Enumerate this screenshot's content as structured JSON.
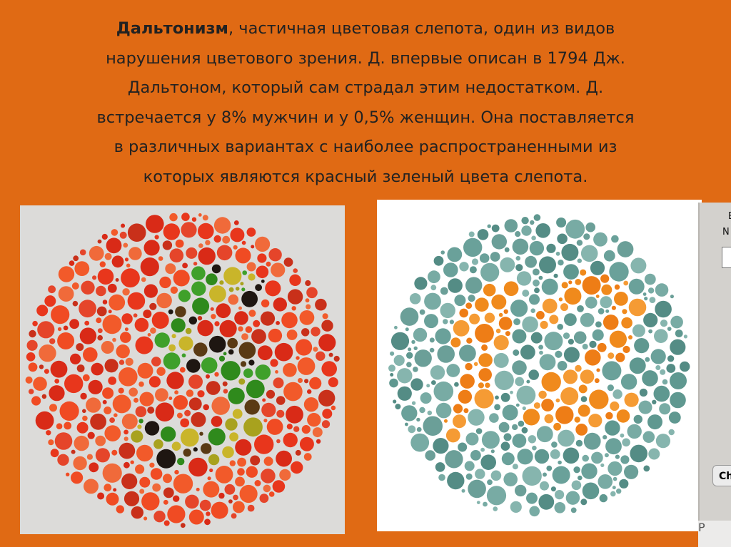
{
  "caption": {
    "term": "Дальтонизм",
    "lines": [
      ", частичная цветовая слепота, один из видов",
      "нарушения цветового зрения. Д. впервые описан в 1794 Дж.",
      "Дальтоном, который сам страдал этим недостатком. Д.",
      "встречается у 8% мужчин и у 0,5% женщин. Она поставляется",
      "в различных вариантах с наиболее распространенными из",
      "которых являются красный зеленый цвета слепота."
    ]
  },
  "plates": [
    {
      "name": "ishihara-plate-5",
      "figure": "5",
      "background_colors": [
        "#e8361c",
        "#f04b23",
        "#d92a17",
        "#f25a2a",
        "#e5452a",
        "#c9301a",
        "#f06a3a"
      ],
      "figure_colors": [
        "#2f8a1c",
        "#3fa02a",
        "#1e1611",
        "#a8a21e",
        "#c9b52a",
        "#5a3a14"
      ]
    },
    {
      "name": "ishihara-plate-12",
      "figure": "12",
      "background_colors": [
        "#6aa19a",
        "#5f9890",
        "#78aba4",
        "#548c85",
        "#6b9f98",
        "#86b5ae"
      ],
      "figure_colors": [
        "#f08a1c",
        "#ee7d16",
        "#f59b34"
      ]
    }
  ],
  "side_panel": {
    "char1": "E",
    "char2": "N",
    "button_label": "Ch",
    "footer": "P"
  }
}
